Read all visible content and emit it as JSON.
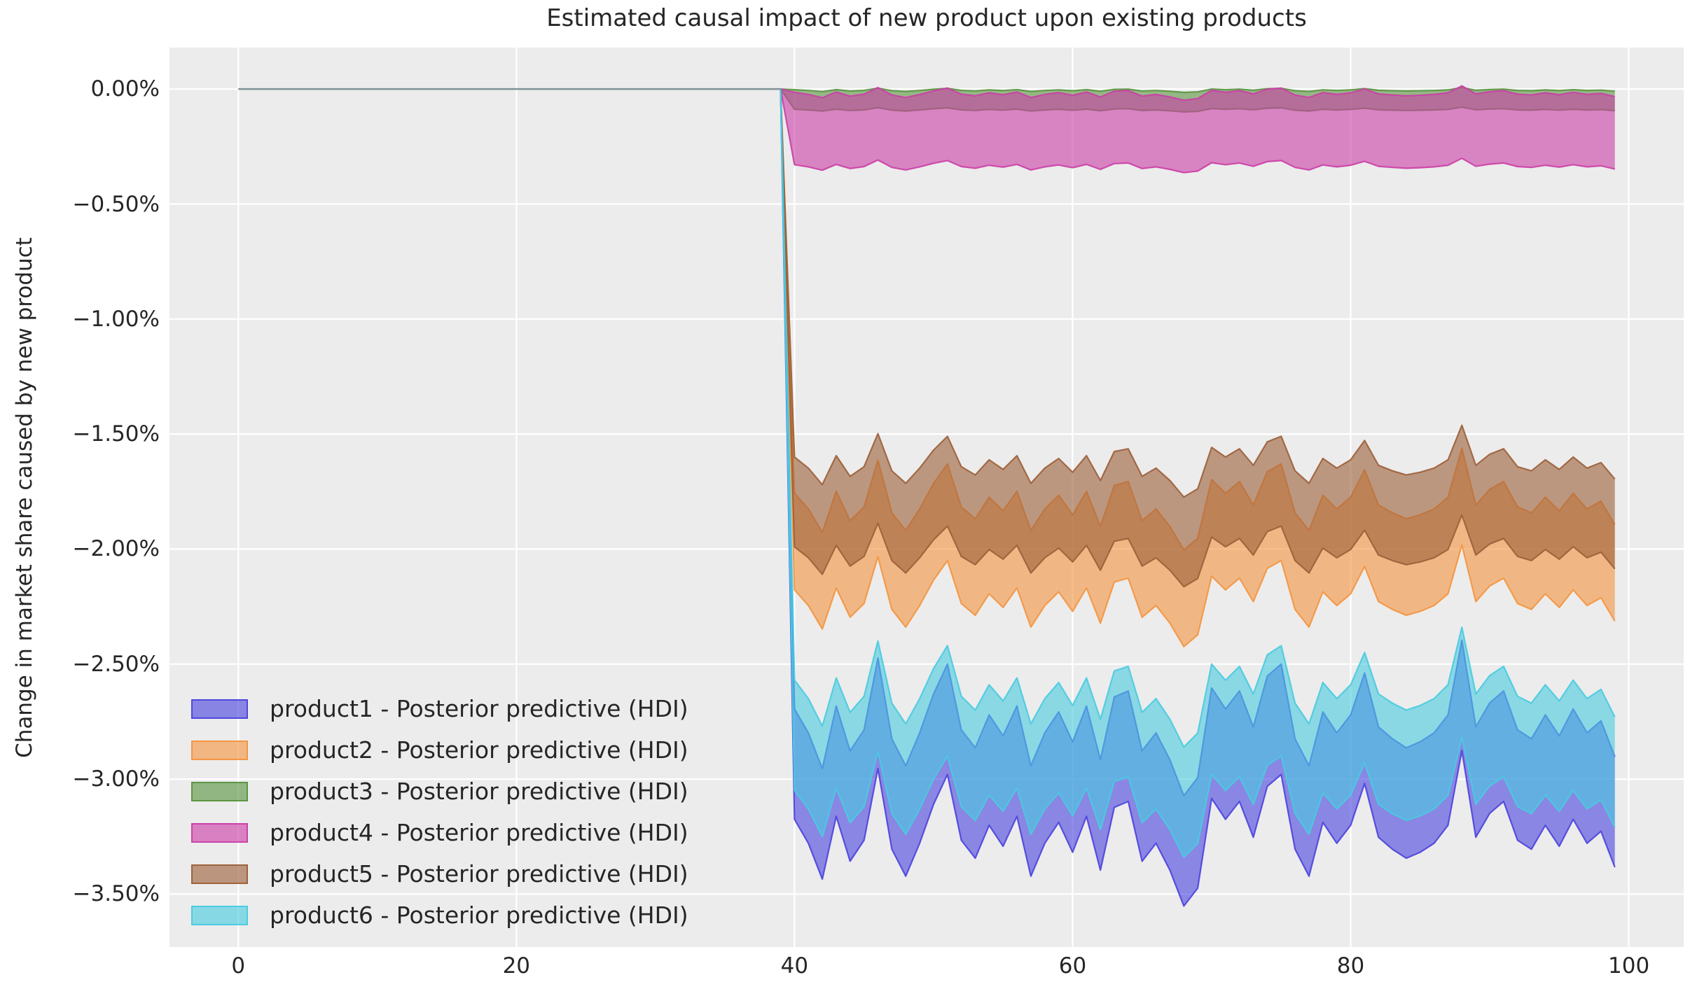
{
  "title": "Estimated causal impact of new product upon existing products",
  "ylabel": "Change in market share caused by new product",
  "colors": {
    "figure_background": "#ffffff",
    "plot_background": "#ececec",
    "grid_color": "#ffffff",
    "text_color": "#262626",
    "pre_period_line_color": "#82959a"
  },
  "chart_data": {
    "type": "area",
    "subtype": "posterior-predictive-hdi-bands",
    "title": "Estimated causal impact of new product upon existing products",
    "xlabel": "",
    "ylabel": "Change in market share caused by new product",
    "grid": true,
    "legend_position": "lower-left",
    "xlim": [
      -4.95,
      103.95
    ],
    "ylim_pct": [
      -3.73,
      0.18
    ],
    "x_ticks": [
      0,
      20,
      40,
      60,
      80,
      100
    ],
    "y_ticks_pct": [
      0,
      -0.5,
      -1,
      -1.5,
      -2,
      -2.5,
      -3,
      -3.5
    ],
    "y_tick_labels": [
      "0.00%",
      "−0.50%",
      "−1.00%",
      "−1.50%",
      "−2.00%",
      "−2.50%",
      "−3.00%",
      "−3.50%"
    ],
    "pre_period": {
      "x_start": 0,
      "x_end": 39,
      "value_pct": 0
    },
    "post_period": {
      "x_start": 40,
      "x_end": 99
    },
    "note": "Bands are HDI intervals in percent; band value at x = hdi_top_pct/hdi_bottom_pct + amplitude * deviation_pct[x-40]. All bands connect to 0% at x=39.",
    "deviation_pct": [
      0.05,
      -0.03,
      -0.15,
      0.06,
      -0.09,
      -0.02,
      0.22,
      -0.05,
      -0.14,
      -0.03,
      0.1,
      0.2,
      -0.02,
      -0.08,
      0.03,
      -0.04,
      0.06,
      -0.14,
      -0.03,
      0.04,
      -0.06,
      0.06,
      -0.12,
      0.09,
      0.11,
      -0.09,
      -0.03,
      -0.12,
      -0.24,
      -0.18,
      0.12,
      0.05,
      0.11,
      -0.01,
      0.16,
      0.2,
      -0.05,
      -0.14,
      0.04,
      -0.03,
      0.03,
      0.17,
      -0.01,
      -0.05,
      -0.08,
      -0.06,
      -0.03,
      0.03,
      0.28,
      -0.01,
      0.07,
      0.11,
      -0.02,
      -0.05,
      0.03,
      -0.04,
      0.05,
      -0.03,
      0.01,
      -0.11
    ],
    "series": [
      {
        "name": "product1",
        "label": "product1 - Posterior predictive (HDI)",
        "color": "#4a43dd",
        "fill_alpha": 0.6,
        "edge_alpha": 0.9,
        "hdi_top_pct": -2.76,
        "hdi_bottom_pct": -3.24,
        "amplitude": 1.3
      },
      {
        "name": "product2",
        "label": "product2 - Posterior predictive (HDI)",
        "color": "#f4953f",
        "fill_alpha": 0.6,
        "edge_alpha": 0.9,
        "hdi_top_pct": -1.8,
        "hdi_bottom_pct": -2.22,
        "amplitude": 0.85
      },
      {
        "name": "product3",
        "label": "product3 - Posterior predictive (HDI)",
        "color": "#5a9440",
        "fill_alpha": 0.6,
        "edge_alpha": 0.9,
        "hdi_top_pct": -0.005,
        "hdi_bottom_pct": -0.09,
        "amplitude": 0.04
      },
      {
        "name": "product4",
        "label": "product4 - Posterior predictive (HDI)",
        "color": "#cb3ea6",
        "fill_alpha": 0.6,
        "edge_alpha": 0.9,
        "hdi_top_pct": -0.02,
        "hdi_bottom_pct": -0.335,
        "amplitude": 0.12
      },
      {
        "name": "product5",
        "label": "product5 - Posterior predictive (HDI)",
        "color": "#9c5f38",
        "fill_alpha": 0.6,
        "edge_alpha": 0.9,
        "hdi_top_pct": -1.63,
        "hdi_bottom_pct": -2.02,
        "amplitude": 0.6
      },
      {
        "name": "product6",
        "label": "product6 - Posterior predictive (HDI)",
        "color": "#49cbe0",
        "fill_alpha": 0.6,
        "edge_alpha": 0.9,
        "hdi_top_pct": -2.62,
        "hdi_bottom_pct": -3.1,
        "amplitude": 1.0
      }
    ]
  }
}
